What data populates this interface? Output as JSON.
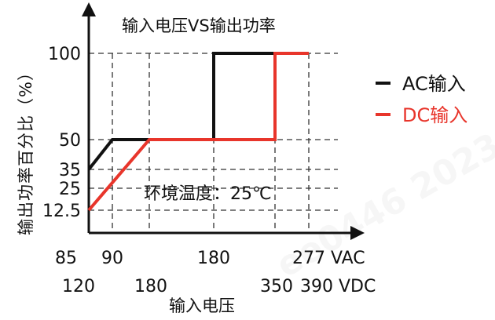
{
  "chart_data": {
    "type": "line",
    "title": "输入电压VS输出功率",
    "xlabel": "输入电压",
    "ylabel": "输出功率百分比（%）",
    "annotation": "环境温度：25℃",
    "watermark": "ee0446 2023",
    "x_ticks_ac": {
      "values": [
        85,
        90,
        180,
        277
      ],
      "labels": [
        "85",
        "90",
        "180",
        "277 VAC"
      ]
    },
    "x_ticks_dc": {
      "values": [
        120,
        180,
        350,
        390
      ],
      "labels": [
        "120",
        "180",
        "350",
        "390 VDC"
      ]
    },
    "y_ticks": [
      12.5,
      25,
      35,
      50,
      100
    ],
    "y_tick_labels": [
      "12.5",
      "25",
      "35",
      "50",
      "100"
    ],
    "grid": true,
    "legend_position": "right",
    "series": [
      {
        "name": "AC输入",
        "color": "#111111",
        "x_axis": "AC",
        "points": [
          [
            85,
            35
          ],
          [
            90,
            50
          ],
          [
            100,
            50
          ],
          [
            180,
            50
          ],
          [
            180,
            100
          ],
          [
            277,
            100
          ]
        ]
      },
      {
        "name": "DC输入",
        "color": "#e8352b",
        "x_axis": "DC",
        "points": [
          [
            120,
            12.5
          ],
          [
            180,
            50
          ],
          [
            350,
            50
          ],
          [
            350,
            100
          ],
          [
            390,
            100
          ]
        ]
      }
    ]
  }
}
